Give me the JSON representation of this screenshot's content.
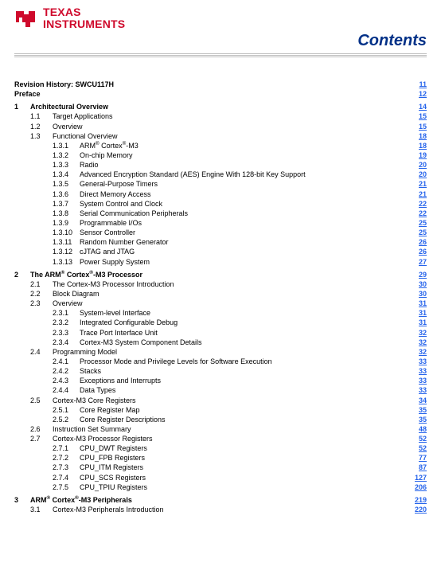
{
  "brand": {
    "name_line1": "TEXAS",
    "name_line2": "INSTRUMENTS",
    "logo_color": "#cf0a2c",
    "accent_color": "#003087",
    "page_link_color": "#2563eb"
  },
  "heading": "Contents",
  "toc": [
    {
      "level": 0,
      "num": "",
      "title": "Revision History: SWCU117H",
      "page": "11",
      "bold": true
    },
    {
      "level": 0,
      "num": "",
      "title": "Preface",
      "page": "12",
      "bold": true
    },
    {
      "level": 1,
      "num": "1",
      "title": "Architectural Overview",
      "page": "14",
      "bold": true
    },
    {
      "level": 2,
      "num": "1.1",
      "title": "Target Applications",
      "page": "15"
    },
    {
      "level": 2,
      "num": "1.2",
      "title": "Overview",
      "page": "15"
    },
    {
      "level": 2,
      "num": "1.3",
      "title": "Functional Overview",
      "page": "18"
    },
    {
      "level": 3,
      "num": "1.3.1",
      "title": "ARM<sup>®</sup> Cortex<sup>®</sup>-M3",
      "page": "18"
    },
    {
      "level": 3,
      "num": "1.3.2",
      "title": "On-chip Memory",
      "page": "19"
    },
    {
      "level": 3,
      "num": "1.3.3",
      "title": "Radio",
      "page": "20"
    },
    {
      "level": 3,
      "num": "1.3.4",
      "title": "Advanced Encryption Standard (AES) Engine With 128-bit Key Support",
      "page": "20"
    },
    {
      "level": 3,
      "num": "1.3.5",
      "title": "General-Purpose Timers",
      "page": "21"
    },
    {
      "level": 3,
      "num": "1.3.6",
      "title": "Direct Memory Access",
      "page": "21"
    },
    {
      "level": 3,
      "num": "1.3.7",
      "title": "System Control and Clock",
      "page": "22"
    },
    {
      "level": 3,
      "num": "1.3.8",
      "title": "Serial Communication Peripherals",
      "page": "22"
    },
    {
      "level": 3,
      "num": "1.3.9",
      "title": "Programmable I/Os",
      "page": "25"
    },
    {
      "level": 3,
      "num": "1.3.10",
      "title": "Sensor Controller",
      "page": "25"
    },
    {
      "level": 3,
      "num": "1.3.11",
      "title": "Random Number Generator",
      "page": "26"
    },
    {
      "level": 3,
      "num": "1.3.12",
      "title": "cJTAG and JTAG",
      "page": "26"
    },
    {
      "level": 3,
      "num": "1.3.13",
      "title": "Power Supply System",
      "page": "27"
    },
    {
      "level": 1,
      "num": "2",
      "title": "The ARM<sup>®</sup> Cortex<sup>®</sup>-M3 Processor",
      "page": "29",
      "bold": true
    },
    {
      "level": 2,
      "num": "2.1",
      "title": "The Cortex-M3 Processor Introduction",
      "page": "30"
    },
    {
      "level": 2,
      "num": "2.2",
      "title": "Block Diagram",
      "page": "30"
    },
    {
      "level": 2,
      "num": "2.3",
      "title": "Overview",
      "page": "31"
    },
    {
      "level": 3,
      "num": "2.3.1",
      "title": "System-level Interface",
      "page": "31"
    },
    {
      "level": 3,
      "num": "2.3.2",
      "title": "Integrated Configurable Debug",
      "page": "31"
    },
    {
      "level": 3,
      "num": "2.3.3",
      "title": "Trace Port Interface Unit",
      "page": "32"
    },
    {
      "level": 3,
      "num": "2.3.4",
      "title": "Cortex-M3 System Component Details",
      "page": "32"
    },
    {
      "level": 2,
      "num": "2.4",
      "title": "Programming Model",
      "page": "32"
    },
    {
      "level": 3,
      "num": "2.4.1",
      "title": "Processor Mode and Privilege Levels for Software Execution",
      "page": "33"
    },
    {
      "level": 3,
      "num": "2.4.2",
      "title": "Stacks",
      "page": "33"
    },
    {
      "level": 3,
      "num": "2.4.3",
      "title": "Exceptions and Interrupts",
      "page": "33"
    },
    {
      "level": 3,
      "num": "2.4.4",
      "title": "Data Types",
      "page": "33"
    },
    {
      "level": 2,
      "num": "2.5",
      "title": "Cortex-M3 Core Registers",
      "page": "34"
    },
    {
      "level": 3,
      "num": "2.5.1",
      "title": "Core Register Map",
      "page": "35"
    },
    {
      "level": 3,
      "num": "2.5.2",
      "title": "Core Register Descriptions",
      "page": "35"
    },
    {
      "level": 2,
      "num": "2.6",
      "title": "Instruction Set Summary",
      "page": "48"
    },
    {
      "level": 2,
      "num": "2.7",
      "title": "Cortex-M3 Processor Registers",
      "page": "52"
    },
    {
      "level": 3,
      "num": "2.7.1",
      "title": "CPU_DWT Registers",
      "page": "52"
    },
    {
      "level": 3,
      "num": "2.7.2",
      "title": "CPU_FPB Registers",
      "page": "77"
    },
    {
      "level": 3,
      "num": "2.7.3",
      "title": "CPU_ITM Registers",
      "page": "87"
    },
    {
      "level": 3,
      "num": "2.7.4",
      "title": "CPU_SCS Registers",
      "page": "127"
    },
    {
      "level": 3,
      "num": "2.7.5",
      "title": "CPU_TPIU Registers",
      "page": "206"
    },
    {
      "level": 1,
      "num": "3",
      "title": "ARM<sup>®</sup> Cortex<sup>®</sup>-M3 Peripherals",
      "page": "219",
      "bold": true
    },
    {
      "level": 2,
      "num": "3.1",
      "title": "Cortex-M3 Peripherals Introduction",
      "page": "220"
    }
  ]
}
